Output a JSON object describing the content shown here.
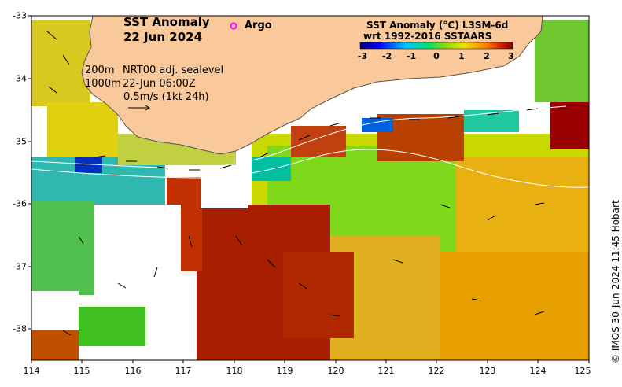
{
  "map": {
    "title_line1": "SST Anomaly",
    "title_line2": "22 Jun 2024",
    "argo_label": "Argo",
    "contour_info": {
      "line1_depth": "200m",
      "line1_text": "NRT00 adj. sealevel",
      "line2_depth": "1000m",
      "line2_text": "22-Jun 06:00Z",
      "line3_text": "0.5m/s (1kt 24h)"
    },
    "colorbar": {
      "title_line1": "SST Anomaly (°C) L3SM-6d",
      "title_line2": "wrt 1992-2016 SSTAARS",
      "ticks": [
        "-3",
        "-2",
        "-1",
        "0",
        "1",
        "2",
        "3"
      ],
      "min": -3,
      "max": 3
    },
    "credit": "© IMOS 30-Jun-2024 11:45 Hobart",
    "lon_range": [
      114,
      125
    ],
    "lat_range": [
      -38.5,
      -33
    ],
    "lon_ticks": [
      "114",
      "115",
      "116",
      "117",
      "118",
      "119",
      "120",
      "121",
      "122",
      "123",
      "124",
      "125"
    ],
    "lat_ticks": [
      "-33",
      "-34",
      "-35",
      "-36",
      "-37",
      "-38"
    ],
    "colors": {
      "land": "#f9c89b",
      "coast": "#555555",
      "argo_marker": "#ff00ff",
      "background": "#ffffff"
    }
  }
}
